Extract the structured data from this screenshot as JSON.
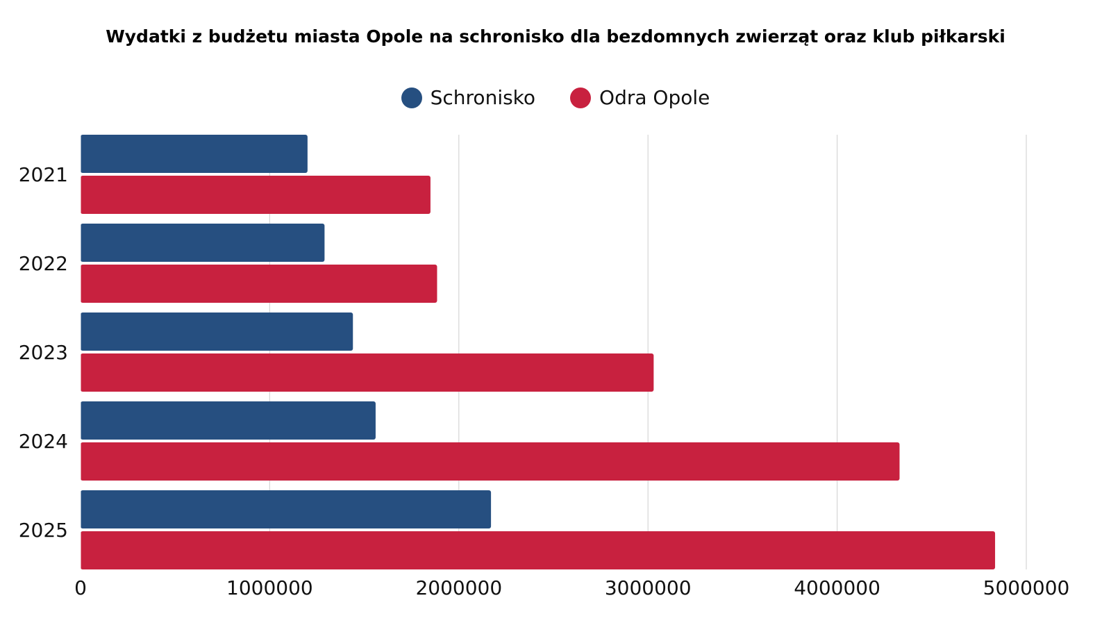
{
  "chart_data": {
    "type": "bar",
    "orientation": "horizontal",
    "title": "Wydatki z budżetu miasta Opole na schronisko dla bezdomnych zwierząt oraz klub piłkarski",
    "xlabel": "",
    "ylabel": "",
    "categories": [
      "2021",
      "2022",
      "2023",
      "2024",
      "2025"
    ],
    "series": [
      {
        "name": "Schronisko",
        "color": "#264f80",
        "values": [
          1200000,
          1290000,
          1440000,
          1560000,
          2170000
        ]
      },
      {
        "name": "Odra Opole",
        "color": "#c8213f",
        "values": [
          1850000,
          1885000,
          3030000,
          4330000,
          4835000
        ]
      }
    ],
    "xlim": [
      0,
      5000000
    ],
    "xticks": [
      "0",
      "1000000",
      "2000000",
      "3000000",
      "4000000",
      "5000000"
    ],
    "grid": true,
    "legend_position": "top-center"
  }
}
